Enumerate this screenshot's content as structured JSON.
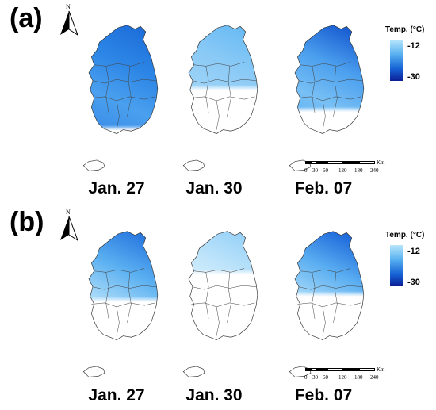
{
  "panels": [
    {
      "label": "(a)",
      "maps": [
        {
          "caption": "Jan. 27",
          "fill": [
            "#1e6fda",
            "#2d86e6",
            "#4aa0ee",
            "#3b8ee9"
          ],
          "coverage": 0.92
        },
        {
          "caption": "Jan. 30",
          "fill": [
            "#6bbcf4",
            "#8bcaf6",
            "#9ed4f8",
            "#7cc4f5"
          ],
          "coverage": 0.55
        },
        {
          "caption": "Feb. 07",
          "fill": [
            "#1a5fd3",
            "#4b9fee",
            "#78c0f5",
            "#5aaef1"
          ],
          "coverage": 0.75
        }
      ]
    },
    {
      "label": "(b)",
      "maps": [
        {
          "caption": "Jan. 27",
          "fill": [
            "#2a7ae0",
            "#5bb0f1",
            "#a8daf9",
            "#7fc5f6"
          ],
          "coverage": 0.6
        },
        {
          "caption": "Jan. 30",
          "fill": [
            "#9ad3f8",
            "#c2e6fb",
            "#dff1fd",
            "#cfeafc"
          ],
          "coverage": 0.35
        },
        {
          "caption": "Feb. 07",
          "fill": [
            "#1f6bdc",
            "#5aaef1",
            "#a6d9f9",
            "#84c8f6"
          ],
          "coverage": 0.55
        }
      ]
    }
  ],
  "north_arrow": {
    "letter": "N"
  },
  "legend": {
    "title": "Temp. (°C)",
    "max_label": "-12",
    "min_label": "-30",
    "colors": [
      "#b9e6fb",
      "#59b1f0",
      "#1764d6",
      "#0b1e97"
    ]
  },
  "scale_bar": {
    "ticks": [
      "0",
      "30",
      "60",
      "120",
      "180",
      "240"
    ],
    "unit": "Km"
  }
}
